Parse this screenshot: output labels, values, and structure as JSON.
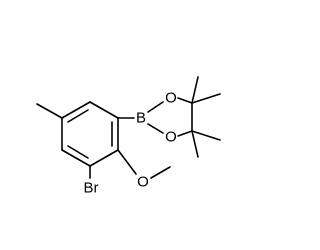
{
  "atoms": {
    "boron": "B",
    "oxygen_top": "O",
    "oxygen_bottom": "O",
    "oxygen_methoxy": "O",
    "bromine": "Br"
  }
}
